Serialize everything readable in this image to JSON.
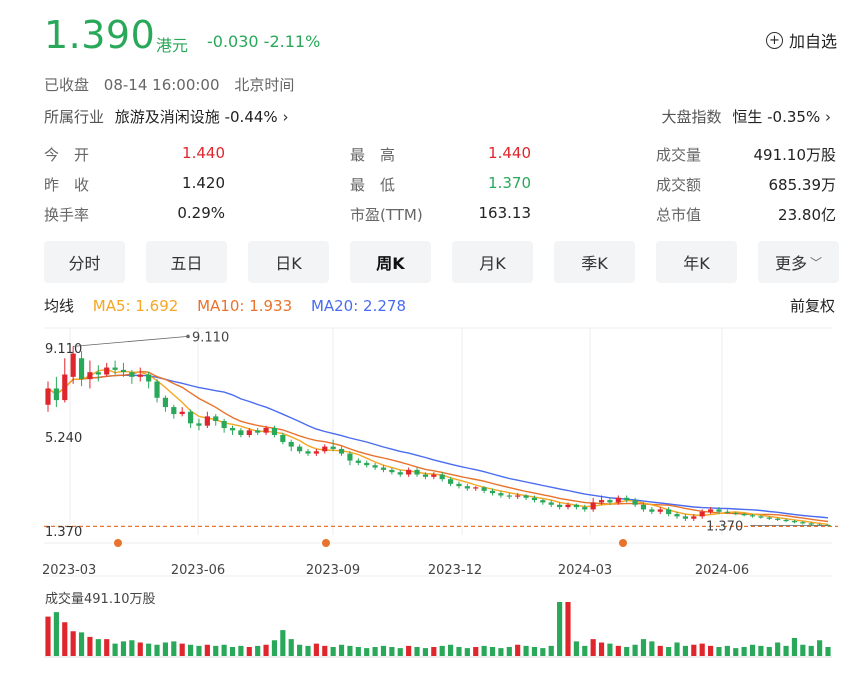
{
  "quote": {
    "price": "1.390",
    "currency": "港元",
    "change": "-0.030",
    "change_pct": "-2.11%",
    "status": "已收盘",
    "datetime": "08-14 16:00:00",
    "timezone": "北京时间",
    "watch_label": "加自选"
  },
  "industry": {
    "label": "所属行业",
    "name": "旅游及消闲设施",
    "change": "-0.44%"
  },
  "market": {
    "label": "大盘指数",
    "name": "恒生",
    "change": "-0.35%"
  },
  "stats": [
    {
      "label": "今　开",
      "value": "1.440",
      "color": "red"
    },
    {
      "label": "最　高",
      "value": "1.440",
      "color": "red"
    },
    {
      "label": "成交量",
      "value": "491.10万股",
      "color": ""
    },
    {
      "label": "昨　收",
      "value": "1.420",
      "color": ""
    },
    {
      "label": "最　低",
      "value": "1.370",
      "color": "green"
    },
    {
      "label": "成交额",
      "value": "685.39万",
      "color": ""
    },
    {
      "label": "换手率",
      "value": "0.29%",
      "color": ""
    },
    {
      "label": "市盈(TTM)",
      "value": "163.13",
      "color": ""
    },
    {
      "label": "总市值",
      "value": "23.80亿",
      "color": ""
    }
  ],
  "tabs": [
    "分时",
    "五日",
    "日K",
    "周K",
    "月K",
    "季K",
    "年K",
    "更多"
  ],
  "active_tab": "周K",
  "ma": {
    "title": "均线",
    "ma5": "MA5: 1.692",
    "ma10": "MA10: 1.933",
    "ma20": "MA20: 2.278",
    "adjust": "前复权",
    "colors": {
      "ma5": "#f5a623",
      "ma10": "#e8732c",
      "ma20": "#4a6cf0"
    }
  },
  "colors": {
    "up": "#e0262d",
    "down": "#2aa85a"
  },
  "chart_data": {
    "type": "candlestick",
    "y_ticks": [
      "9.110",
      "5.240",
      "1.370"
    ],
    "high_label": "9.110",
    "low_label": "1.370",
    "x_ticks": [
      "2023-03",
      "2023-06",
      "2023-09",
      "2023-12",
      "2024-03",
      "2024-06"
    ],
    "volume_label": "成交量491.10万股",
    "candles": [
      [
        6.6,
        7.3,
        7.6,
        6.3
      ],
      [
        7.3,
        6.8,
        7.8,
        6.5
      ],
      [
        6.8,
        7.9,
        8.6,
        6.7
      ],
      [
        7.8,
        8.8,
        9.11,
        7.5
      ],
      [
        8.6,
        7.7,
        8.9,
        7.4
      ],
      [
        7.7,
        8.0,
        8.5,
        7.3
      ],
      [
        8.0,
        7.9,
        8.3,
        7.6
      ],
      [
        7.9,
        8.2,
        8.4,
        7.8
      ],
      [
        8.2,
        8.1,
        8.5,
        7.9
      ],
      [
        8.1,
        8.0,
        8.4,
        7.8
      ],
      [
        8.0,
        7.8,
        8.1,
        7.5
      ],
      [
        7.8,
        7.9,
        8.2,
        7.6
      ],
      [
        7.9,
        7.6,
        8.0,
        7.3
      ],
      [
        7.6,
        6.9,
        7.7,
        6.7
      ],
      [
        6.9,
        6.5,
        7.0,
        6.3
      ],
      [
        6.5,
        6.2,
        6.6,
        6.0
      ],
      [
        6.2,
        6.3,
        6.5,
        6.1
      ],
      [
        6.3,
        5.8,
        6.4,
        5.6
      ],
      [
        5.8,
        5.7,
        6.0,
        5.5
      ],
      [
        5.7,
        6.1,
        6.3,
        5.6
      ],
      [
        6.1,
        5.9,
        6.2,
        5.7
      ],
      [
        5.9,
        5.6,
        6.0,
        5.4
      ],
      [
        5.6,
        5.5,
        5.7,
        5.3
      ],
      [
        5.5,
        5.3,
        5.6,
        5.2
      ],
      [
        5.3,
        5.5,
        5.6,
        5.2
      ],
      [
        5.5,
        5.4,
        5.6,
        5.3
      ],
      [
        5.4,
        5.6,
        5.7,
        5.3
      ],
      [
        5.6,
        5.3,
        5.7,
        5.2
      ],
      [
        5.3,
        5.0,
        5.4,
        4.9
      ],
      [
        5.0,
        4.8,
        5.1,
        4.6
      ],
      [
        4.8,
        4.6,
        4.9,
        4.5
      ],
      [
        4.6,
        4.5,
        4.7,
        4.4
      ],
      [
        4.5,
        4.6,
        4.7,
        4.4
      ],
      [
        4.6,
        4.8,
        4.9,
        4.5
      ],
      [
        4.8,
        4.7,
        5.1,
        4.6
      ],
      [
        4.7,
        4.5,
        4.8,
        4.4
      ],
      [
        4.5,
        4.2,
        4.6,
        4.0
      ],
      [
        4.2,
        4.1,
        4.3,
        4.0
      ],
      [
        4.1,
        4.0,
        4.2,
        3.9
      ],
      [
        4.0,
        3.9,
        4.1,
        3.8
      ],
      [
        3.9,
        3.8,
        4.0,
        3.7
      ],
      [
        3.8,
        3.7,
        3.9,
        3.6
      ],
      [
        3.7,
        3.6,
        3.8,
        3.5
      ],
      [
        3.6,
        3.8,
        3.9,
        3.5
      ],
      [
        3.8,
        3.6,
        3.9,
        3.5
      ],
      [
        3.6,
        3.5,
        3.7,
        3.4
      ],
      [
        3.5,
        3.6,
        3.7,
        3.4
      ],
      [
        3.6,
        3.4,
        3.7,
        3.3
      ],
      [
        3.4,
        3.2,
        3.5,
        3.1
      ],
      [
        3.2,
        3.1,
        3.3,
        3.0
      ],
      [
        3.1,
        3.0,
        3.2,
        2.9
      ],
      [
        3.0,
        3.05,
        3.1,
        2.9
      ],
      [
        3.05,
        2.9,
        3.1,
        2.8
      ],
      [
        2.9,
        2.8,
        3.0,
        2.7
      ],
      [
        2.8,
        2.7,
        2.9,
        2.6
      ],
      [
        2.7,
        2.65,
        2.8,
        2.55
      ],
      [
        2.65,
        2.7,
        2.8,
        2.55
      ],
      [
        2.7,
        2.6,
        2.75,
        2.5
      ],
      [
        2.6,
        2.5,
        2.7,
        2.4
      ],
      [
        2.5,
        2.4,
        2.55,
        2.3
      ],
      [
        2.4,
        2.3,
        2.5,
        2.2
      ],
      [
        2.3,
        2.2,
        2.4,
        2.1
      ],
      [
        2.2,
        2.3,
        2.4,
        2.1
      ],
      [
        2.3,
        2.2,
        2.35,
        2.1
      ],
      [
        2.2,
        2.1,
        2.3,
        2.0
      ],
      [
        2.1,
        2.4,
        2.6,
        2.0
      ],
      [
        2.4,
        2.5,
        2.7,
        2.3
      ],
      [
        2.5,
        2.4,
        2.6,
        2.3
      ],
      [
        2.4,
        2.6,
        2.7,
        2.3
      ],
      [
        2.6,
        2.5,
        2.7,
        2.4
      ],
      [
        2.5,
        2.3,
        2.6,
        2.2
      ],
      [
        2.3,
        2.1,
        2.4,
        2.0
      ],
      [
        2.1,
        2.0,
        2.2,
        1.9
      ],
      [
        2.0,
        2.1,
        2.2,
        1.9
      ],
      [
        2.1,
        1.9,
        2.2,
        1.8
      ],
      [
        1.9,
        1.8,
        2.0,
        1.7
      ],
      [
        1.8,
        1.7,
        1.9,
        1.6
      ],
      [
        1.7,
        1.8,
        1.9,
        1.6
      ],
      [
        1.8,
        2.0,
        2.1,
        1.7
      ],
      [
        2.0,
        2.1,
        2.2,
        1.9
      ],
      [
        2.1,
        2.0,
        2.2,
        1.9
      ],
      [
        2.0,
        1.95,
        2.1,
        1.9
      ],
      [
        1.95,
        1.9,
        2.0,
        1.85
      ],
      [
        1.9,
        1.85,
        1.95,
        1.8
      ],
      [
        1.85,
        1.8,
        1.9,
        1.75
      ],
      [
        1.8,
        1.75,
        1.85,
        1.7
      ],
      [
        1.75,
        1.7,
        1.8,
        1.65
      ],
      [
        1.7,
        1.65,
        1.75,
        1.6
      ],
      [
        1.65,
        1.6,
        1.7,
        1.55
      ],
      [
        1.6,
        1.55,
        1.65,
        1.5
      ],
      [
        1.55,
        1.5,
        1.6,
        1.45
      ],
      [
        1.5,
        1.45,
        1.55,
        1.4
      ],
      [
        1.45,
        1.42,
        1.5,
        1.4
      ],
      [
        1.44,
        1.39,
        1.44,
        1.37
      ]
    ],
    "volumes": [
      3.5,
      3.9,
      3.0,
      2.2,
      2.1,
      1.7,
      1.5,
      1.5,
      1.1,
      1.3,
      1.4,
      1.2,
      1.1,
      1.0,
      1.2,
      1.3,
      1.1,
      1.0,
      0.9,
      1.0,
      0.9,
      1.0,
      0.8,
      0.9,
      0.8,
      0.9,
      1.0,
      1.4,
      2.3,
      1.5,
      1.0,
      0.9,
      1.1,
      0.9,
      0.8,
      1.0,
      0.9,
      0.8,
      0.7,
      0.8,
      0.9,
      0.8,
      0.7,
      0.9,
      0.8,
      0.7,
      0.8,
      0.9,
      1.0,
      0.8,
      0.7,
      0.8,
      0.9,
      0.8,
      0.7,
      0.8,
      1.0,
      0.9,
      0.8,
      0.7,
      0.9,
      4.8,
      4.8,
      1.3,
      0.9,
      1.5,
      1.2,
      1.1,
      0.9,
      0.8,
      1.0,
      1.5,
      1.3,
      0.9,
      0.8,
      1.2,
      0.9,
      1.0,
      1.1,
      0.9,
      0.8,
      0.9,
      0.7,
      0.8,
      1.0,
      0.9,
      0.8,
      1.2,
      0.9,
      1.6,
      1.0,
      0.9,
      1.4,
      0.8
    ]
  }
}
